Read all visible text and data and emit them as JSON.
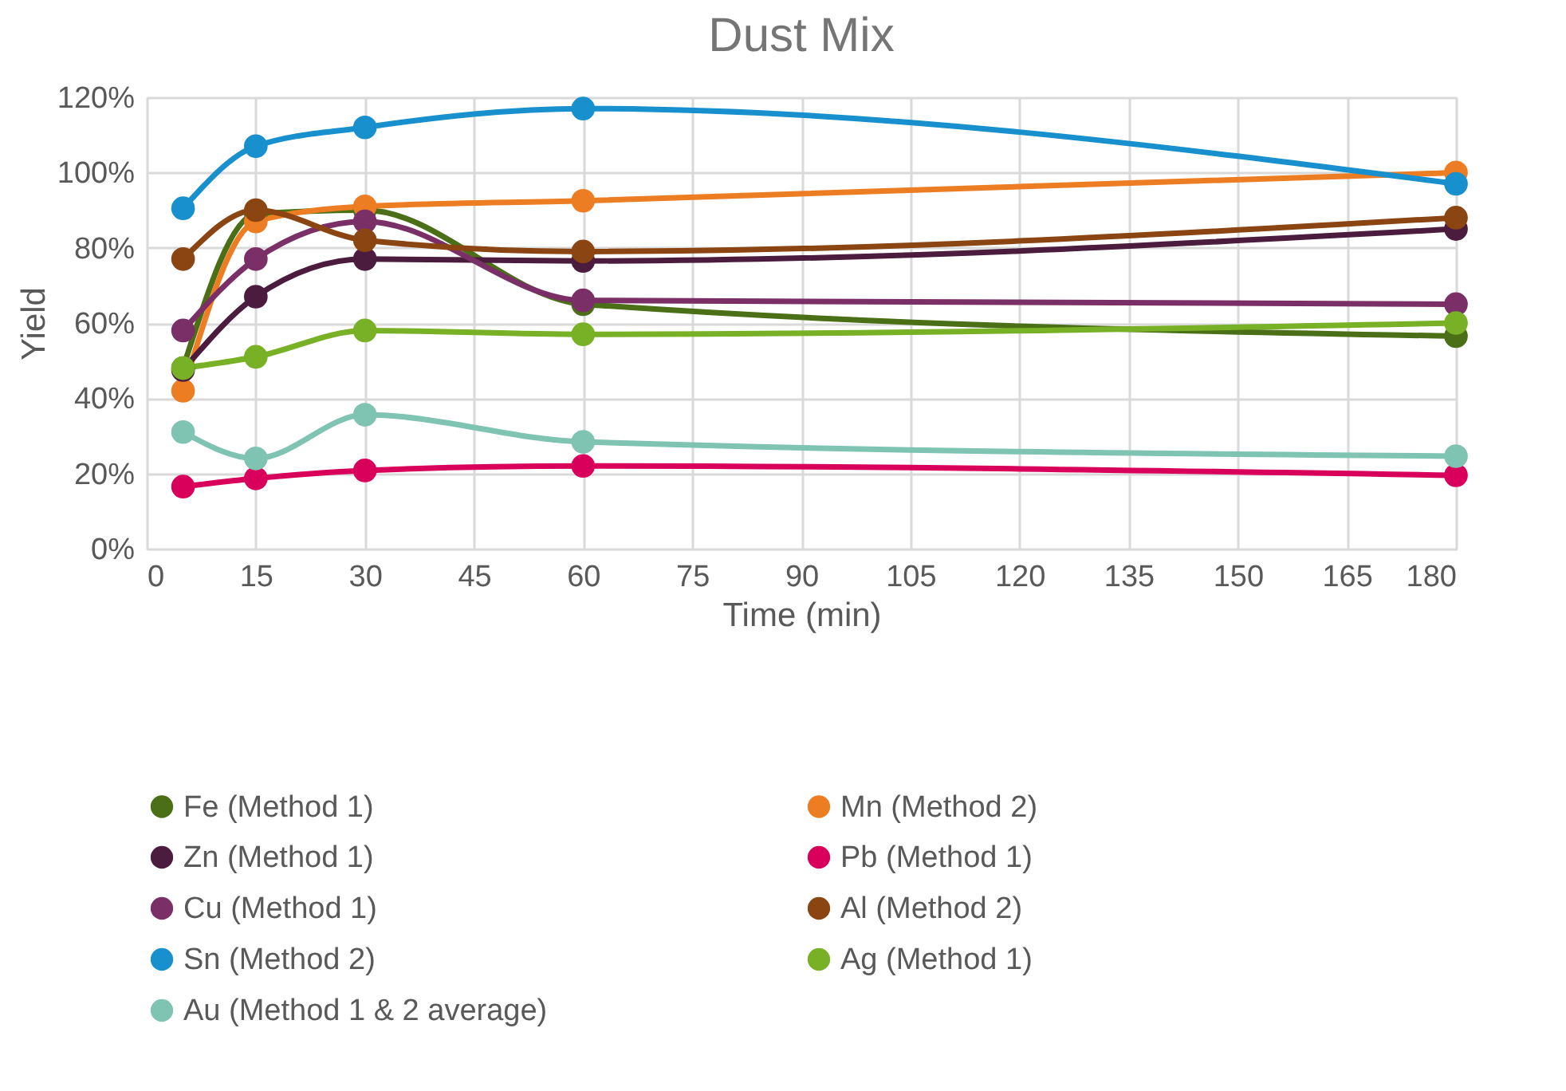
{
  "chart_data": {
    "type": "line",
    "title": "Dust Mix",
    "xlabel": "Time (min)",
    "ylabel": "Yield",
    "x": [
      5,
      15,
      30,
      60,
      180
    ],
    "xlim": [
      0,
      180
    ],
    "xticks": [
      0,
      15,
      30,
      45,
      60,
      75,
      90,
      105,
      120,
      135,
      150,
      165,
      180
    ],
    "ylim": [
      0,
      120
    ],
    "yticks": [
      {
        "value": 0,
        "label": "0%"
      },
      {
        "value": 20,
        "label": "20%"
      },
      {
        "value": 40,
        "label": "40%"
      },
      {
        "value": 60,
        "label": "60%"
      },
      {
        "value": 80,
        "label": "80%"
      },
      {
        "value": 100,
        "label": "100%"
      },
      {
        "value": 120,
        "label": "120%"
      }
    ],
    "grid": true,
    "legend": "bottom",
    "marker": "circle",
    "line_style": "solid",
    "series": [
      {
        "name": "Fe (Method 1)",
        "color": "#4a6f16",
        "values": [
          48,
          89,
          90,
          65,
          56.5
        ]
      },
      {
        "name": "Mn (Method 2)",
        "color": "#ed7d22",
        "values": [
          42,
          87,
          91,
          92.5,
          100
        ]
      },
      {
        "name": "Zn (Method 1)",
        "color": "#4b1c3e",
        "values": [
          47.5,
          67,
          77,
          76.5,
          85
        ]
      },
      {
        "name": "Pb (Method 1)",
        "color": "#d9005b",
        "values": [
          16.5,
          18.7,
          20.8,
          22,
          19.5
        ]
      },
      {
        "name": "Cu (Method 1)",
        "color": "#7b2f67",
        "values": [
          58,
          77,
          87,
          66,
          65
        ]
      },
      {
        "name": "Al  (Method 2)",
        "color": "#8b4513",
        "values": [
          77,
          90,
          82,
          79,
          88
        ]
      },
      {
        "name": "Sn (Method 2)",
        "color": "#1890ce",
        "values": [
          90.5,
          107,
          112,
          117,
          97
        ]
      },
      {
        "name": "Ag (Method 1)",
        "color": "#78b026",
        "values": [
          48,
          51,
          58,
          57,
          60
        ]
      },
      {
        "name": "Au (Method 1 & 2 average)",
        "color": "#7fc4b2",
        "values": [
          31,
          24,
          35.6,
          28.4,
          24.6
        ]
      }
    ]
  }
}
